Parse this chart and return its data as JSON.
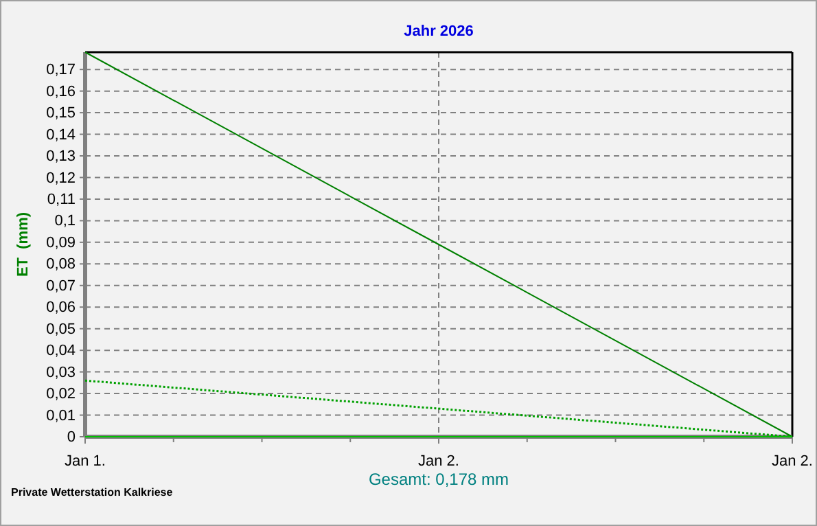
{
  "chart_data": {
    "type": "line",
    "title": "Jahr 2026",
    "ylabel": "ET  (mm)",
    "xlabel": "Gesamt: 0,178 mm",
    "annotations": [
      "Private Wetterstation Kalkriese"
    ],
    "categories": [
      "Jan 1.",
      "Jan 2.",
      "Jan 2."
    ],
    "ylim": [
      0,
      0.178
    ],
    "yticks": [
      {
        "value": 0,
        "label": "0"
      },
      {
        "value": 0.01,
        "label": "0,01"
      },
      {
        "value": 0.02,
        "label": "0,02"
      },
      {
        "value": 0.03,
        "label": "0,03"
      },
      {
        "value": 0.04,
        "label": "0,04"
      },
      {
        "value": 0.05,
        "label": "0,05"
      },
      {
        "value": 0.06,
        "label": "0,06"
      },
      {
        "value": 0.07,
        "label": "0,07"
      },
      {
        "value": 0.08,
        "label": "0,08"
      },
      {
        "value": 0.09,
        "label": "0,09"
      },
      {
        "value": 0.1,
        "label": "0,1"
      },
      {
        "value": 0.11,
        "label": "0,11"
      },
      {
        "value": 0.12,
        "label": "0,12"
      },
      {
        "value": 0.13,
        "label": "0,13"
      },
      {
        "value": 0.14,
        "label": "0,14"
      },
      {
        "value": 0.15,
        "label": "0,15"
      },
      {
        "value": 0.16,
        "label": "0,16"
      },
      {
        "value": 0.17,
        "label": "0,17"
      }
    ],
    "grid": true,
    "marker": "none",
    "series": [
      {
        "color": "#008000",
        "values": [
          0.178,
          0.089,
          0
        ],
        "line_style": "solid"
      },
      {
        "color": "#00a000",
        "values": [
          0.026,
          0.013,
          0
        ],
        "line_style": "dotted"
      },
      {
        "color": "#00c000",
        "values": [
          0,
          0,
          0
        ],
        "line_style": "solid"
      }
    ]
  }
}
